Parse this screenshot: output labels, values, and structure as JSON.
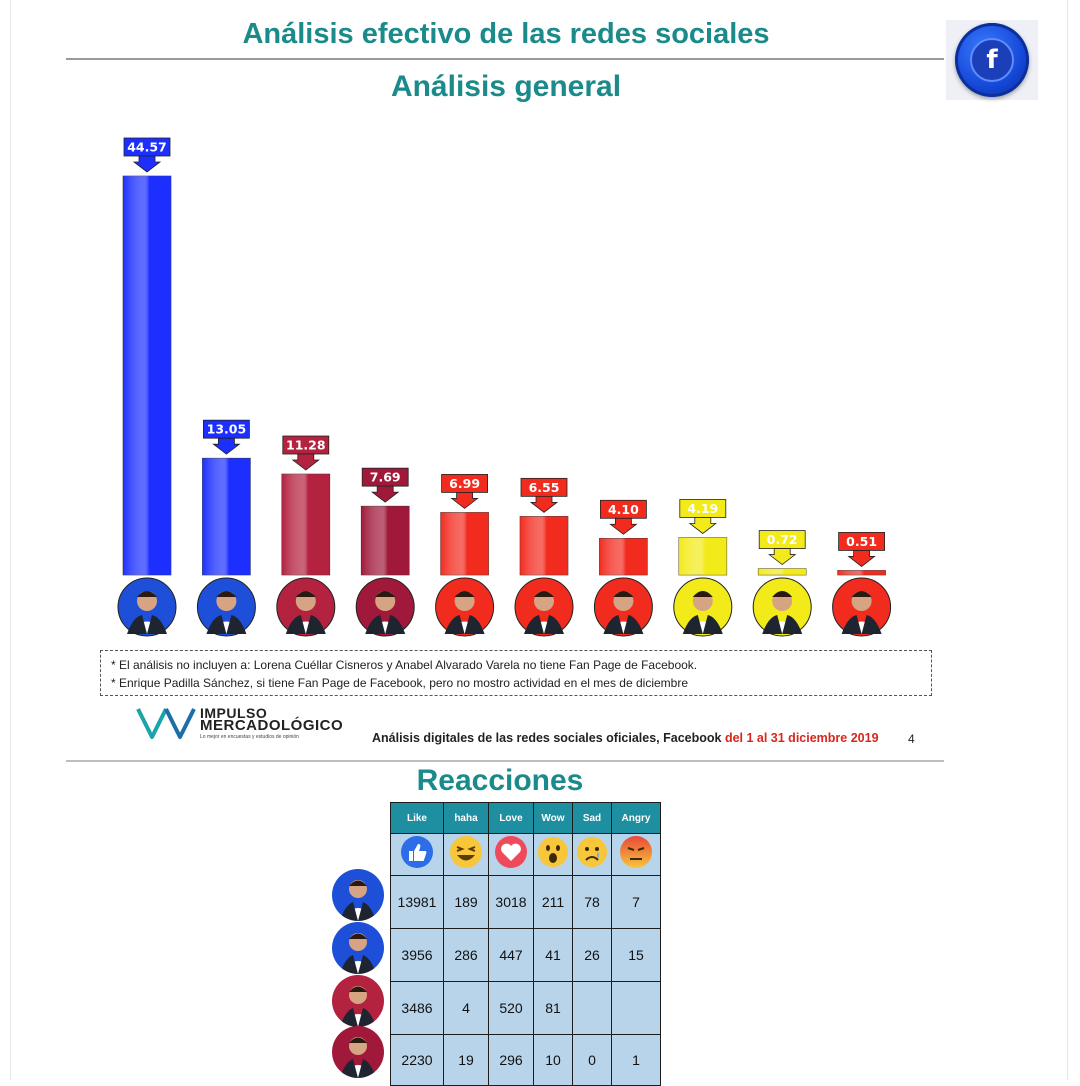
{
  "header": {
    "title": "Análisis efectivo de las redes sociales",
    "subtitle": "Análisis general",
    "fb_icon": "facebook-icon",
    "fb_letter": "f"
  },
  "chart_data": {
    "type": "bar",
    "title": "Análisis general",
    "xlabel": "",
    "ylabel": "",
    "ylim": [
      0,
      46
    ],
    "grid": false,
    "legend": "none",
    "values": [
      44.57,
      13.05,
      11.28,
      7.69,
      6.99,
      6.55,
      4.1,
      4.19,
      0.72,
      0.51
    ],
    "labels": [
      "44.57",
      "13.05",
      "11.28",
      "7.69",
      "6.99",
      "6.55",
      "4.10",
      "4.19",
      "0.72",
      "0.51"
    ],
    "bar_colors": [
      "#1c2fff",
      "#1c2fff",
      "#b3223f",
      "#a0193a",
      "#f22b1f",
      "#f22b1f",
      "#f22b1f",
      "#f3ea1a",
      "#f3ea1a",
      "#f22b1f"
    ],
    "avatar_colors": [
      "#1d4fd8",
      "#1d4fd8",
      "#b3223f",
      "#a0193a",
      "#f22b1f",
      "#f22b1f",
      "#f22b1f",
      "#f3ea1a",
      "#f3ea1a",
      "#f22b1f"
    ]
  },
  "notes": {
    "line1": "* El análisis no incluyen a: Lorena Cuéllar Cisneros y Anabel Alvarado Varela no tiene Fan Page de Facebook.",
    "line2": "* Enrique Padilla Sánchez, si tiene Fan Page de Facebook, pero no mostro actividad en el mes de diciembre"
  },
  "logo": {
    "line1": "IMPULSO",
    "line2": "MERCADOLÓGICO",
    "tagline": "Lo mejor en encuestas y estudios de opinión"
  },
  "footer": {
    "text": "Análisis digitales de las redes sociales oficiales, Facebook",
    "date": "del 1 al 31 diciembre 2019",
    "page": "4"
  },
  "reactions": {
    "title": "Reacciones",
    "headers": [
      "Like",
      "haha",
      "Love",
      "Wow",
      "Sad",
      "Angry"
    ],
    "icons": [
      "like-icon",
      "haha-icon",
      "love-icon",
      "wow-icon",
      "sad-icon",
      "angry-icon"
    ],
    "rows": [
      [
        "13981",
        "189",
        "3018",
        "211",
        "78",
        "7"
      ],
      [
        "3956",
        "286",
        "447",
        "41",
        "26",
        "15"
      ],
      [
        "3486",
        "4",
        "520",
        "81",
        "",
        ""
      ],
      [
        "2230",
        "19",
        "296",
        "10",
        "0",
        "1"
      ]
    ],
    "row_avatar_colors": [
      "#1d4fd8",
      "#1d4fd8",
      "#b3223f",
      "#a0193a"
    ]
  }
}
